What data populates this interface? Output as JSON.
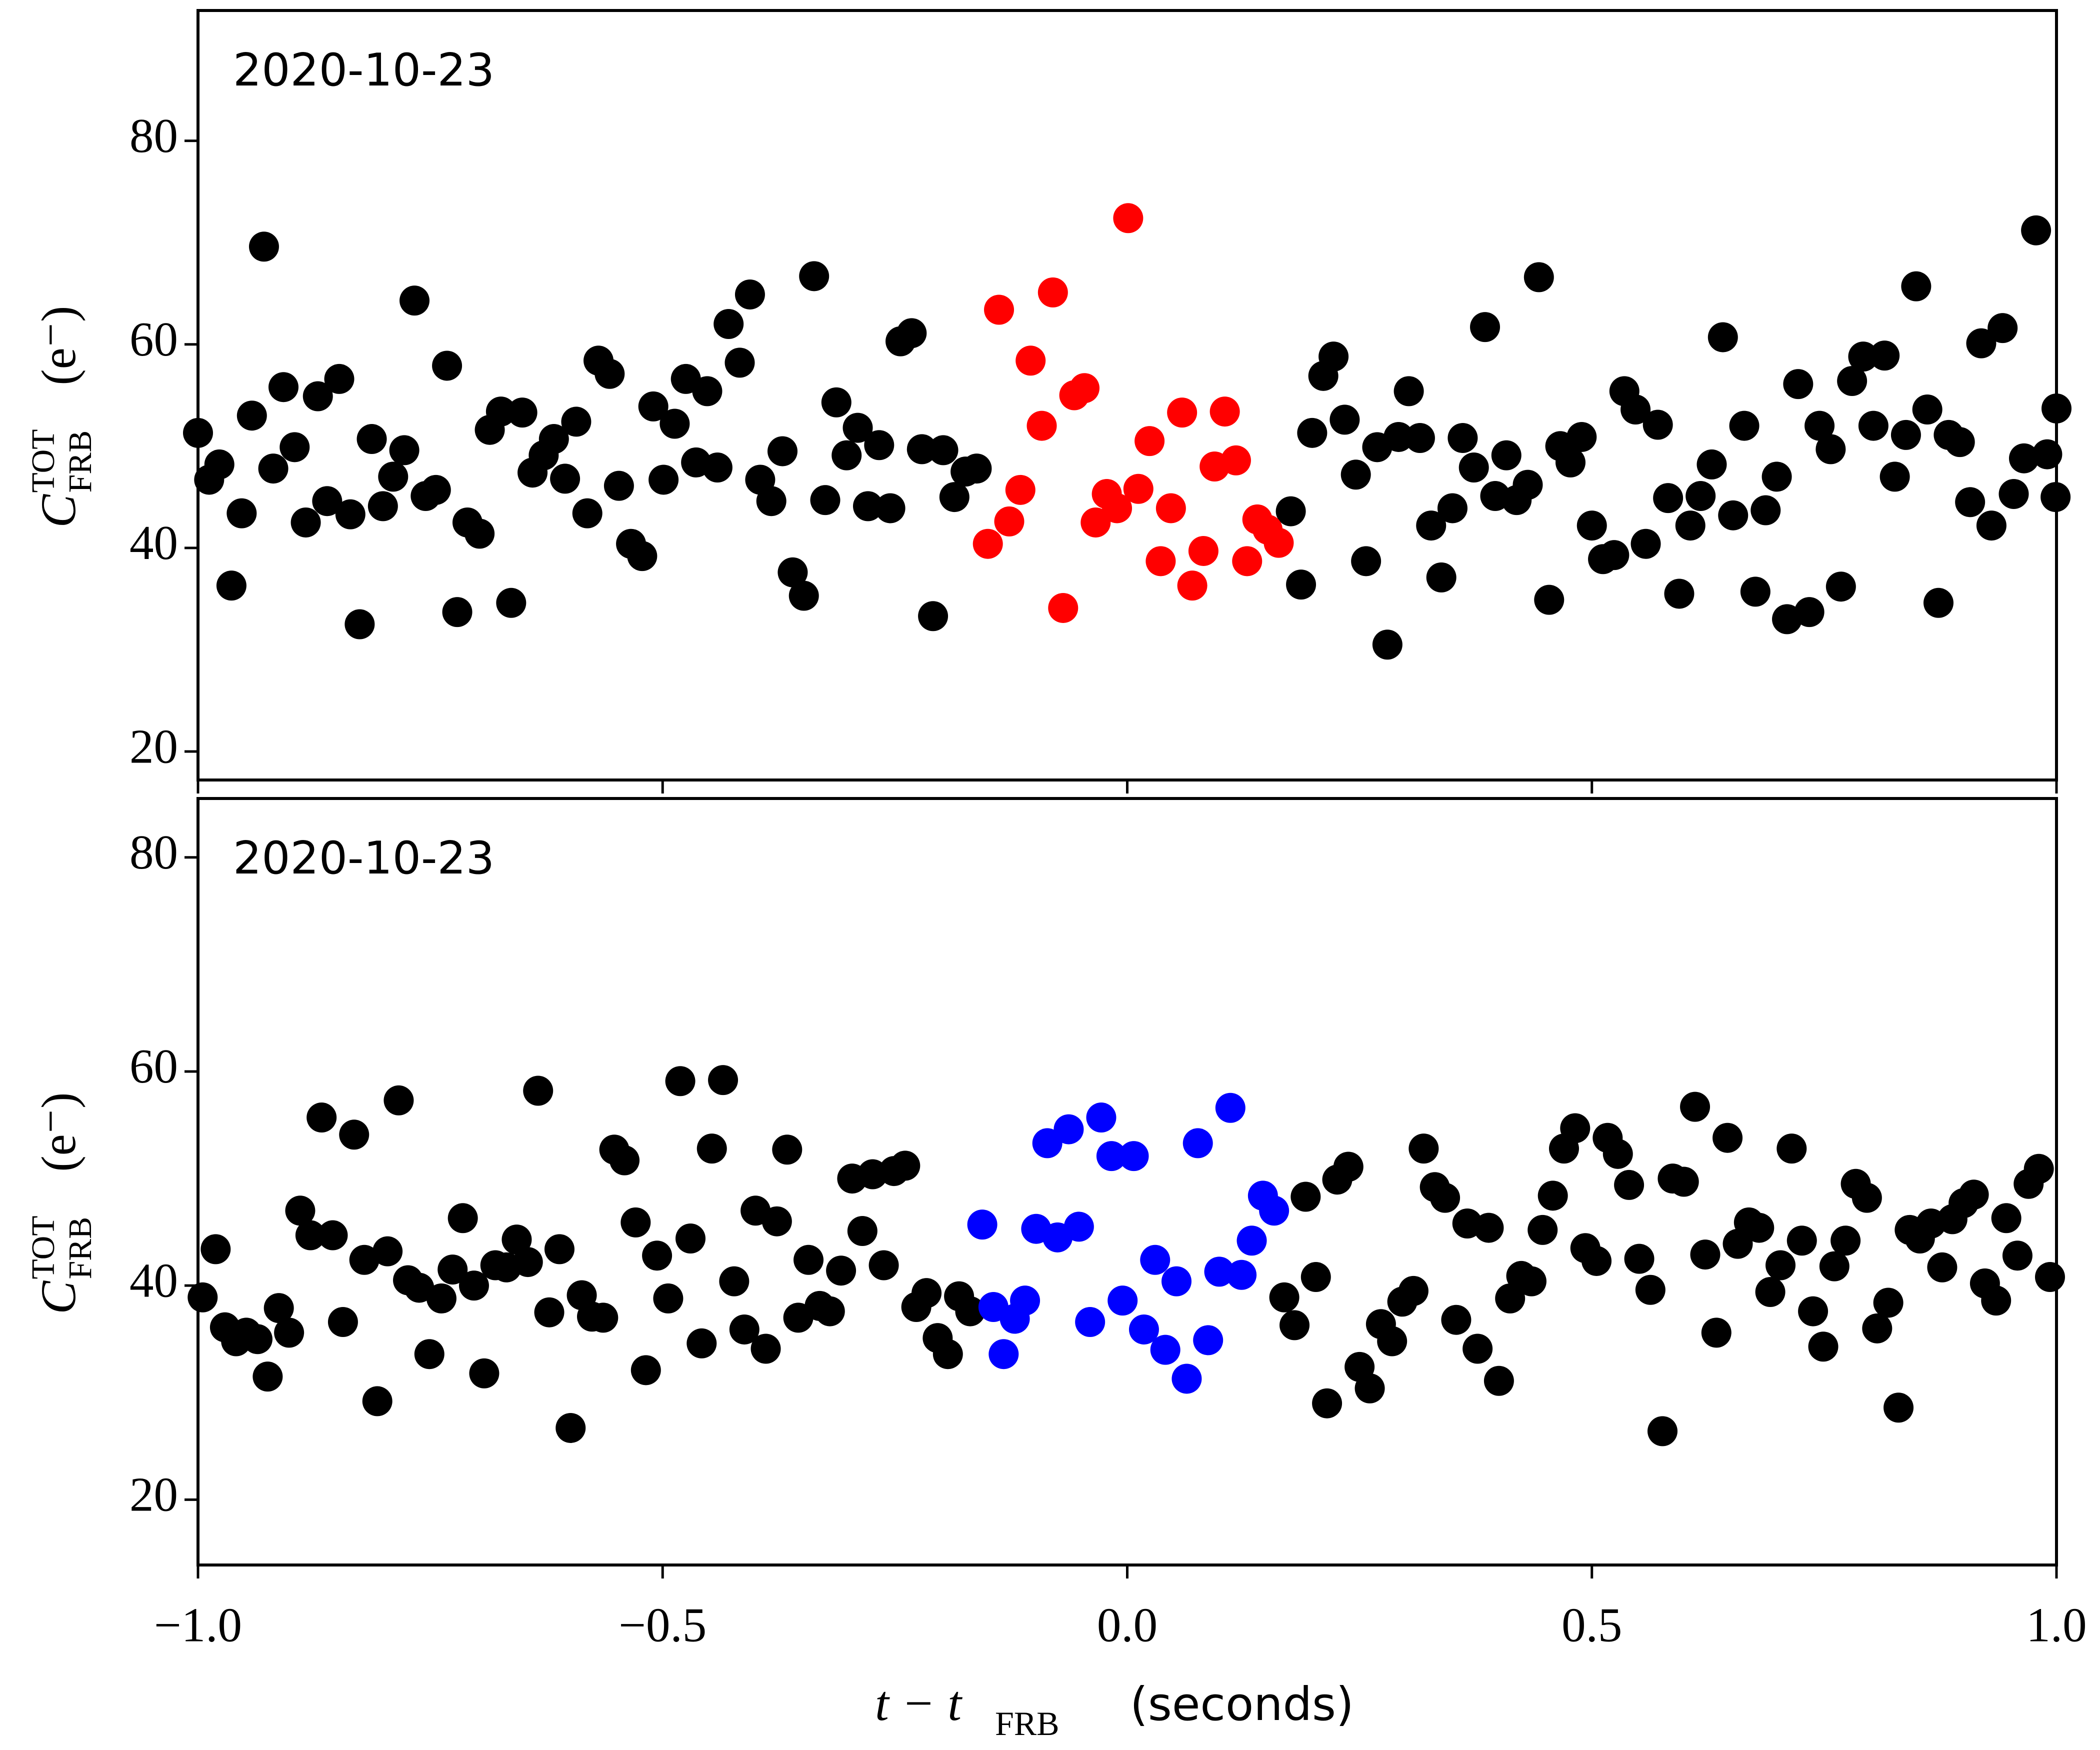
{
  "chart_data": [
    {
      "type": "scatter",
      "annotation": "2020-10-23",
      "ylabel": {
        "symbol": "C",
        "superscript": "TOT",
        "subscript": "FRB",
        "unit": "(e⁻)"
      },
      "xlim": [
        -1,
        1
      ],
      "ylim": [
        17.2,
        92.8
      ],
      "xticks": [
        -1,
        -0.5,
        0,
        0.5,
        1
      ],
      "yticks": [
        20,
        40,
        60,
        80
      ],
      "series": [
        {
          "color": "#000000",
          "x": [
            -1.0,
            -0.988,
            -0.977,
            -0.964,
            -0.953,
            -0.942,
            -0.929,
            -0.919,
            -0.908,
            -0.896,
            -0.884,
            -0.871,
            -0.861,
            -0.848,
            -0.836,
            -0.826,
            -0.813,
            -0.801,
            -0.79,
            -0.778,
            -0.767,
            -0.755,
            -0.744,
            -0.732,
            -0.721,
            -0.71,
            -0.697,
            -0.686,
            -0.674,
            -0.663,
            -0.651,
            -0.64,
            -0.628,
            -0.617,
            -0.605,
            -0.593,
            -0.581,
            -0.569,
            -0.557,
            -0.547,
            -0.534,
            -0.522,
            -0.51,
            -0.499,
            -0.487,
            -0.475,
            -0.464,
            -0.452,
            -0.441,
            -0.429,
            -0.417,
            -0.406,
            -0.395,
            -0.383,
            -0.371,
            -0.36,
            -0.348,
            -0.337,
            -0.325,
            -0.313,
            -0.302,
            -0.29,
            -0.279,
            -0.267,
            -0.255,
            -0.244,
            -0.232,
            -0.221,
            -0.209,
            -0.198,
            -0.186,
            -0.174,
            -0.162,
            0.176,
            0.187,
            0.199,
            0.211,
            0.222,
            0.234,
            0.246,
            0.257,
            0.269,
            0.28,
            0.292,
            0.303,
            0.315,
            0.327,
            0.338,
            0.35,
            0.361,
            0.373,
            0.385,
            0.396,
            0.408,
            0.419,
            0.431,
            0.443,
            0.454,
            0.466,
            0.477,
            0.489,
            0.5,
            0.512,
            0.524,
            0.535,
            0.547,
            0.558,
            0.571,
            0.582,
            0.594,
            0.606,
            0.617,
            0.629,
            0.641,
            0.652,
            0.664,
            0.676,
            0.687,
            0.699,
            0.71,
            0.722,
            0.734,
            0.745,
            0.757,
            0.768,
            0.78,
            0.792,
            0.803,
            0.815,
            0.826,
            0.838,
            0.849,
            0.861,
            0.873,
            0.884,
            0.896,
            0.907,
            0.919,
            0.93,
            0.942,
            0.954,
            0.965,
            0.978,
            0.99,
            0.999,
            1.0
          ],
          "values": [
            51.3,
            46.7,
            48.2,
            36.3,
            43.4,
            53.0,
            69.6,
            47.8,
            55.8,
            49.9,
            42.5,
            54.9,
            44.6,
            56.6,
            43.3,
            32.5,
            50.7,
            44.1,
            47.0,
            49.6,
            64.3,
            45.1,
            45.7,
            57.9,
            33.7,
            42.5,
            41.4,
            51.6,
            53.4,
            34.6,
            53.3,
            47.4,
            49.1,
            50.7,
            46.8,
            52.4,
            43.4,
            58.4,
            57.1,
            46.1,
            40.4,
            39.2,
            53.9,
            46.7,
            52.2,
            56.6,
            48.4,
            55.4,
            47.9,
            62.0,
            58.2,
            64.9,
            46.7,
            44.6,
            49.5,
            37.6,
            35.3,
            66.7,
            44.7,
            54.3,
            49.1,
            51.8,
            44.1,
            50.1,
            43.9,
            60.3,
            61.1,
            49.7,
            33.3,
            49.6,
            45.0,
            47.5,
            47.8,
            43.6,
            36.4,
            51.3,
            56.9,
            58.8,
            52.6,
            47.2,
            38.7,
            49.9,
            30.5,
            50.9,
            55.4,
            50.8,
            42.2,
            37.1,
            43.9,
            50.8,
            47.9,
            61.7,
            45.1,
            49.1,
            44.7,
            46.2,
            66.6,
            34.9,
            50.0,
            48.4,
            50.9,
            42.2,
            38.9,
            39.3,
            55.4,
            53.6,
            40.4,
            52.1,
            44.9,
            35.5,
            42.2,
            45.1,
            48.2,
            60.7,
            43.2,
            52.0,
            35.7,
            43.7,
            47.0,
            33.0,
            56.1,
            33.7,
            52.0,
            49.7,
            36.2,
            56.4,
            58.8,
            52.0,
            58.9,
            47.0,
            51.1,
            65.7,
            53.6,
            34.6,
            51.1,
            50.4,
            44.5,
            60.1,
            42.2,
            61.6,
            45.3,
            48.8,
            71.2,
            49.2,
            45.0,
            53.7
          ]
        },
        {
          "color": "#ff0000",
          "x": [
            -0.15,
            -0.138,
            -0.127,
            -0.115,
            -0.104,
            -0.092,
            -0.08,
            -0.069,
            -0.057,
            -0.046,
            -0.034,
            -0.022,
            -0.011,
            0.001,
            0.012,
            0.024,
            0.036,
            0.047,
            0.059,
            0.07,
            0.082,
            0.094,
            0.105,
            0.117,
            0.129,
            0.14,
            0.151,
            0.163
          ],
          "values": [
            40.4,
            63.4,
            42.6,
            45.7,
            58.4,
            52.0,
            65.1,
            34.1,
            55.0,
            55.7,
            42.5,
            45.3,
            43.9,
            72.4,
            45.8,
            50.5,
            38.7,
            43.9,
            53.3,
            36.3,
            39.7,
            48.0,
            53.4,
            48.6,
            38.7,
            42.8,
            41.8,
            40.5
          ]
        }
      ]
    },
    {
      "type": "scatter",
      "annotation": "2020-10-23",
      "ylabel": {
        "symbol": "C",
        "superscript": "TOT",
        "subscript": "FRB",
        "unit": "(e⁻)"
      },
      "xlabel": {
        "text": "t − t",
        "subscript": "FRB",
        "unit": "(seconds)"
      },
      "xlim": [
        -1,
        1
      ],
      "ylim": [
        13.9,
        85.5
      ],
      "xticks": [
        {
          "value": -1,
          "label": "−1.0"
        },
        {
          "value": -0.5,
          "label": "−0.5"
        },
        {
          "value": 0,
          "label": "0.0"
        },
        {
          "value": 0.5,
          "label": "0.5"
        },
        {
          "value": 1,
          "label": "1.0"
        }
      ],
      "yticks": [
        20,
        40,
        60,
        80
      ],
      "series": [
        {
          "color": "#000000",
          "x": [
            -0.995,
            -0.981,
            -0.971,
            -0.959,
            -0.948,
            -0.936,
            -0.925,
            -0.913,
            -0.902,
            -0.89,
            -0.879,
            -0.867,
            -0.855,
            -0.844,
            -0.832,
            -0.821,
            -0.807,
            -0.796,
            -0.784,
            -0.774,
            -0.762,
            -0.751,
            -0.738,
            -0.726,
            -0.715,
            -0.703,
            -0.692,
            -0.68,
            -0.668,
            -0.657,
            -0.645,
            -0.634,
            -0.622,
            -0.611,
            -0.599,
            -0.587,
            -0.576,
            -0.564,
            -0.552,
            -0.541,
            -0.529,
            -0.518,
            -0.506,
            -0.494,
            -0.481,
            -0.47,
            -0.458,
            -0.447,
            -0.435,
            -0.423,
            -0.412,
            -0.4,
            -0.389,
            -0.377,
            -0.366,
            -0.354,
            -0.343,
            -0.331,
            -0.32,
            -0.308,
            -0.296,
            -0.285,
            -0.274,
            -0.262,
            -0.251,
            -0.239,
            -0.227,
            -0.216,
            -0.204,
            -0.193,
            -0.181,
            -0.169,
            0.169,
            0.18,
            0.192,
            0.203,
            0.215,
            0.226,
            0.238,
            0.25,
            0.261,
            0.273,
            0.285,
            0.296,
            0.308,
            0.319,
            0.331,
            0.342,
            0.354,
            0.366,
            0.377,
            0.389,
            0.4,
            0.412,
            0.424,
            0.435,
            0.447,
            0.458,
            0.47,
            0.482,
            0.493,
            0.505,
            0.517,
            0.528,
            0.54,
            0.551,
            0.563,
            0.576,
            0.587,
            0.599,
            0.611,
            0.622,
            0.634,
            0.646,
            0.657,
            0.669,
            0.68,
            0.692,
            0.703,
            0.715,
            0.726,
            0.738,
            0.749,
            0.761,
            0.773,
            0.784,
            0.796,
            0.807,
            0.819,
            0.83,
            0.842,
            0.853,
            0.865,
            0.877,
            0.888,
            0.9,
            0.911,
            0.923,
            0.935,
            0.946,
            0.958,
            0.97,
            0.981,
            0.993
          ],
          "values": [
            38.9,
            43.4,
            36.1,
            34.8,
            35.6,
            35.0,
            31.5,
            37.9,
            35.6,
            47.0,
            44.7,
            55.7,
            44.7,
            36.6,
            54.1,
            42.4,
            29.2,
            43.2,
            57.3,
            40.5,
            39.8,
            33.6,
            38.8,
            41.5,
            46.3,
            40.0,
            31.8,
            41.9,
            41.7,
            44.3,
            42.2,
            58.2,
            37.5,
            43.4,
            26.7,
            39.1,
            37.1,
            37.0,
            52.7,
            51.7,
            45.9,
            32.1,
            42.8,
            38.8,
            59.1,
            44.4,
            34.6,
            52.8,
            59.2,
            40.4,
            35.9,
            47.0,
            34.1,
            46.0,
            52.7,
            37.0,
            42.4,
            38.1,
            37.6,
            41.4,
            50.0,
            45.1,
            50.4,
            41.9,
            50.7,
            51.2,
            38.0,
            39.3,
            35.1,
            33.6,
            39.0,
            37.6,
            38.9,
            36.3,
            48.3,
            40.8,
            29.0,
            49.9,
            51.1,
            32.4,
            30.4,
            36.4,
            34.8,
            38.5,
            39.5,
            52.8,
            49.2,
            48.2,
            36.8,
            45.8,
            34.1,
            45.4,
            31.1,
            38.8,
            40.9,
            40.4,
            45.2,
            48.4,
            52.8,
            54.7,
            43.5,
            42.3,
            53.8,
            52.3,
            49.4,
            42.5,
            39.6,
            26.4,
            50.0,
            49.7,
            56.7,
            42.9,
            35.6,
            53.8,
            43.9,
            45.9,
            45.4,
            39.4,
            41.9,
            52.8,
            44.2,
            37.6,
            34.3,
            41.8,
            44.2,
            49.5,
            48.2,
            36.0,
            38.4,
            28.6,
            45.2,
            44.4,
            45.8,
            41.7,
            46.2,
            47.7,
            48.5,
            40.2,
            38.6,
            46.3,
            42.8,
            49.5,
            50.9,
            40.8
          ]
        },
        {
          "color": "#0000ff",
          "x": [
            -0.156,
            -0.144,
            -0.133,
            -0.121,
            -0.11,
            -0.098,
            -0.086,
            -0.075,
            -0.063,
            -0.052,
            -0.04,
            -0.028,
            -0.017,
            -0.005,
            0.007,
            0.018,
            0.03,
            0.041,
            0.053,
            0.064,
            0.076,
            0.087,
            0.099,
            0.111,
            0.123,
            0.134,
            0.146,
            0.158
          ],
          "values": [
            45.7,
            38.0,
            33.6,
            36.9,
            38.6,
            45.3,
            53.3,
            44.5,
            54.6,
            45.5,
            36.6,
            55.7,
            52.1,
            38.6,
            52.1,
            35.9,
            42.4,
            34.0,
            40.4,
            31.3,
            53.3,
            34.9,
            41.3,
            56.6,
            41.0,
            44.2,
            48.4,
            47.0
          ]
        }
      ]
    }
  ]
}
